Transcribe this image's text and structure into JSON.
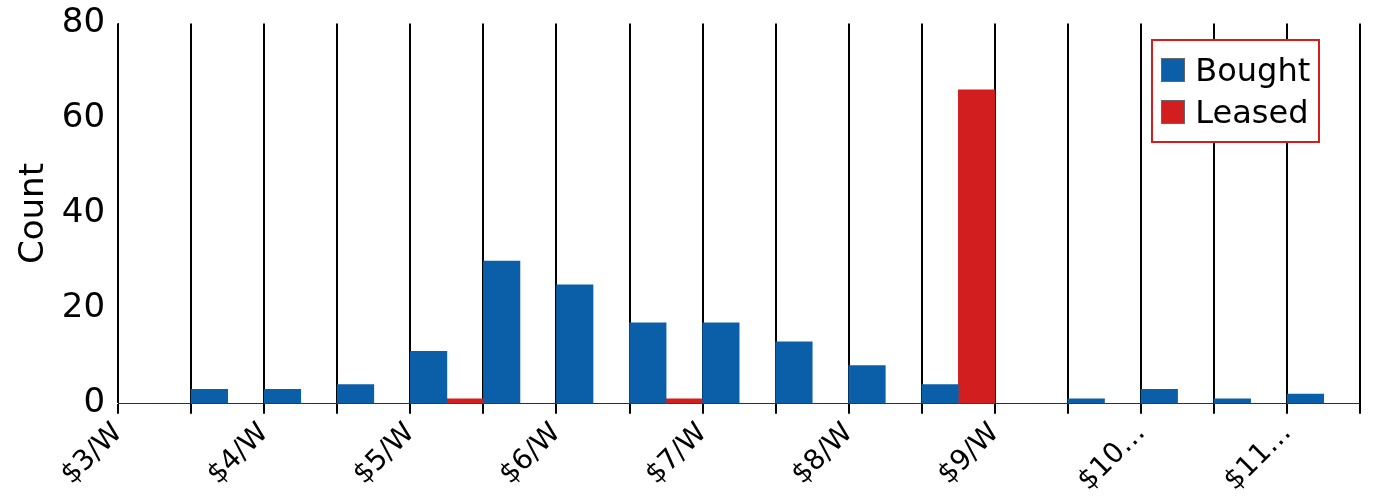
{
  "chart_data": {
    "type": "histogram",
    "ylabel": "Count",
    "bins": [
      3,
      3.5,
      4,
      4.5,
      5,
      5.5,
      6,
      6.5,
      7,
      7.5,
      8,
      8.5,
      9,
      9.5,
      10,
      10.5,
      11,
      11.5
    ],
    "series": [
      {
        "name": "Bought",
        "color": "#0b5fa9",
        "values": [
          0,
          3,
          3,
          4,
          11,
          30,
          25,
          17,
          17,
          13,
          8,
          4,
          0,
          1,
          3,
          1,
          2
        ]
      },
      {
        "name": "Leased",
        "color": "#d21e1e",
        "values": [
          0,
          0,
          0,
          0,
          1,
          0,
          0,
          1,
          0,
          0,
          0,
          66,
          0,
          0,
          0,
          0,
          0
        ]
      }
    ],
    "xlim": [
      3,
      11.5
    ],
    "xticks": [
      {
        "value": 3,
        "label": "$3/W"
      },
      {
        "value": 3.5,
        "label": null
      },
      {
        "value": 4,
        "label": "$4/W"
      },
      {
        "value": 4.5,
        "label": null
      },
      {
        "value": 5,
        "label": "$5/W"
      },
      {
        "value": 5.5,
        "label": null
      },
      {
        "value": 6,
        "label": "$6/W"
      },
      {
        "value": 6.5,
        "label": null
      },
      {
        "value": 7,
        "label": "$7/W"
      },
      {
        "value": 7.5,
        "label": null
      },
      {
        "value": 8,
        "label": "$8/W"
      },
      {
        "value": 8.5,
        "label": null
      },
      {
        "value": 9,
        "label": "$9/W"
      },
      {
        "value": 9.5,
        "label": null
      },
      {
        "value": 10,
        "label": "$10…"
      },
      {
        "value": 10.5,
        "label": null
      },
      {
        "value": 11,
        "label": "$11…"
      },
      {
        "value": 11.5,
        "label": null
      }
    ],
    "ylim": [
      0,
      80
    ],
    "yticks": [
      0,
      20,
      40,
      60,
      80
    ],
    "grid": "x",
    "legend": "top right"
  }
}
